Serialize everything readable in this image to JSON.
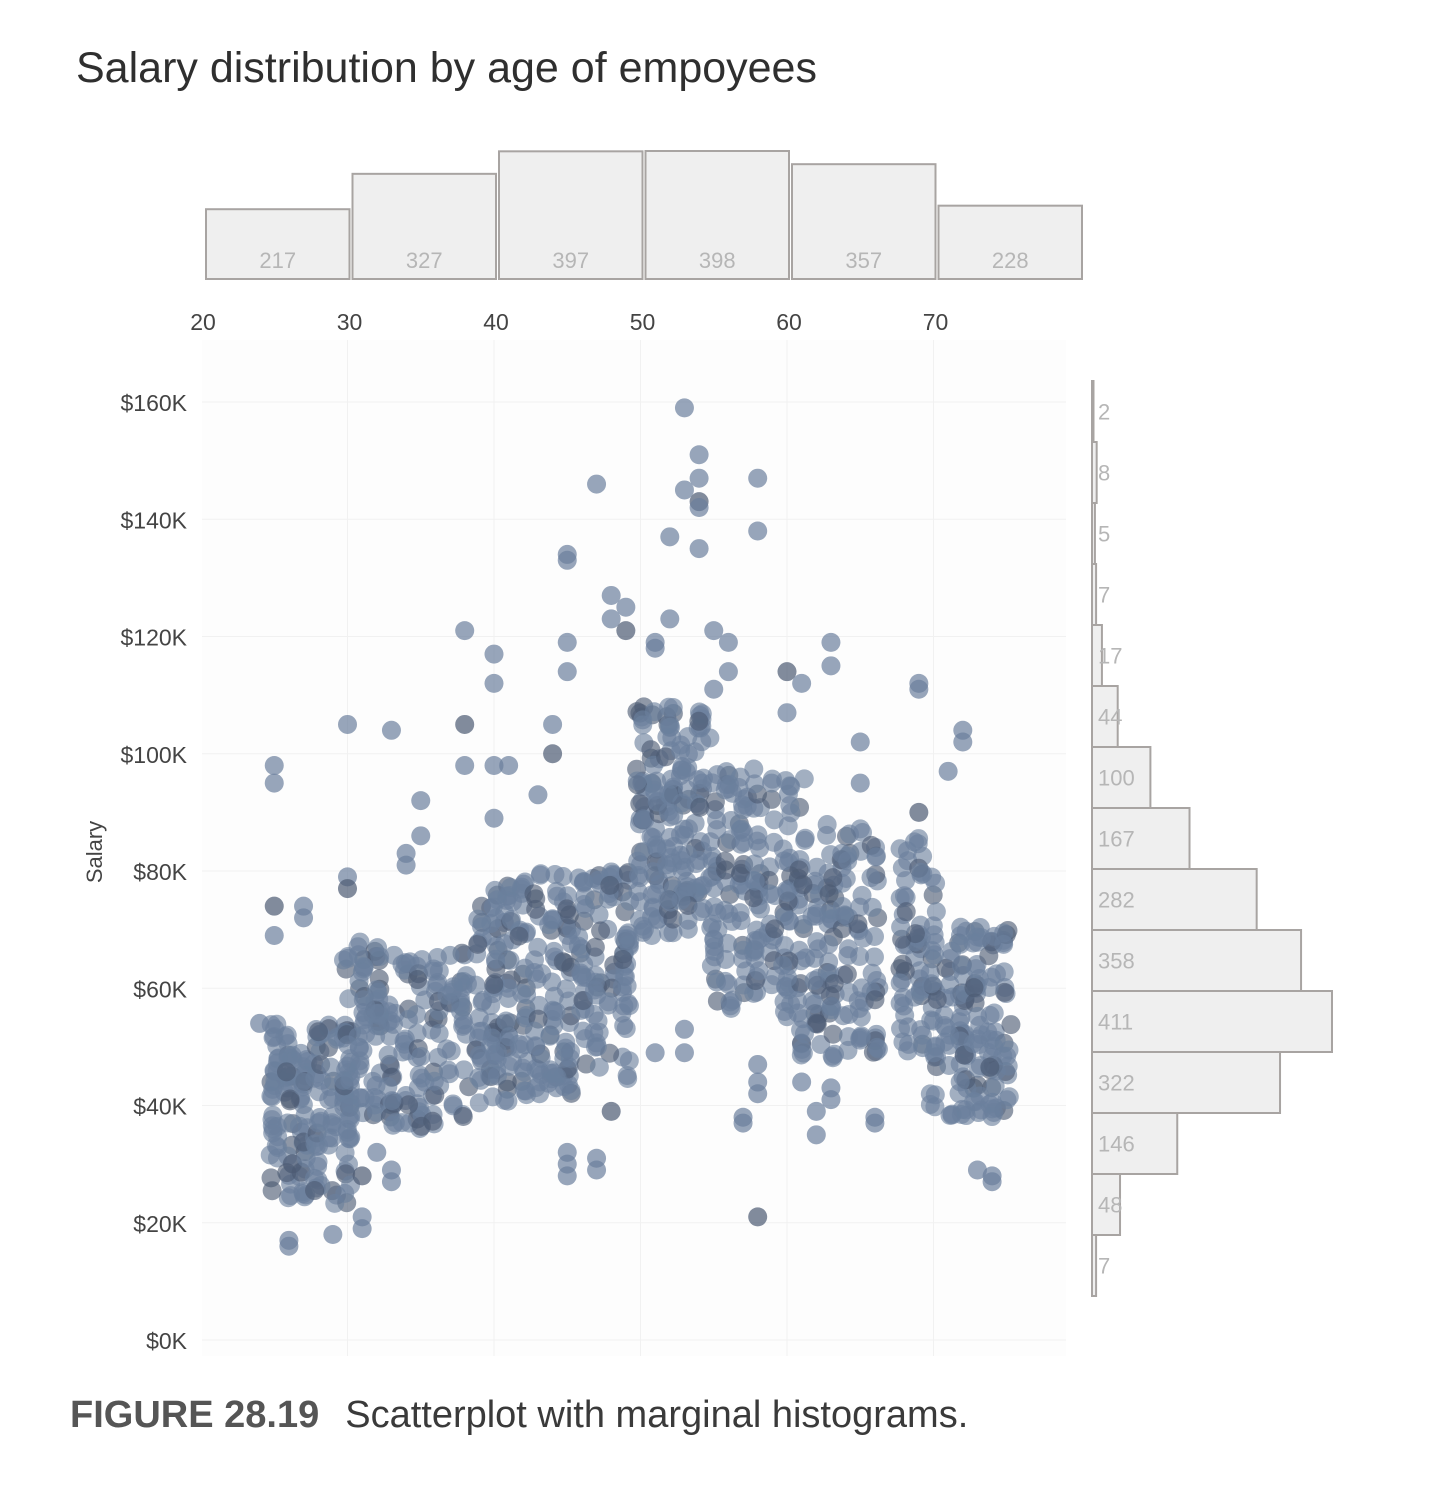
{
  "chart_data": {
    "type": "scatter",
    "title": "Salary distribution by age of empoyees",
    "ylabel": "Salary",
    "xlabel": "",
    "xlim": [
      20,
      78
    ],
    "ylim": [
      0,
      160000
    ],
    "x_ticks": [
      "20",
      "30",
      "40",
      "50",
      "60",
      "70"
    ],
    "y_ticks": [
      "$0K",
      "$20K",
      "$40K",
      "$60K",
      "$80K",
      "$100K",
      "$120K",
      "$140K",
      "$160K"
    ],
    "grid": true,
    "point_color": "#6b7f9c",
    "highlight_color": "#4c5a72",
    "outliers": [
      {
        "x": 24,
        "y": 54000
      },
      {
        "x": 25,
        "y": 98000
      },
      {
        "x": 25,
        "y": 95000
      },
      {
        "x": 25,
        "y": 74000
      },
      {
        "x": 25,
        "y": 69000
      },
      {
        "x": 27,
        "y": 74000
      },
      {
        "x": 27,
        "y": 72000
      },
      {
        "x": 26,
        "y": 17000
      },
      {
        "x": 26,
        "y": 16000
      },
      {
        "x": 29,
        "y": 18000
      },
      {
        "x": 30,
        "y": 105000
      },
      {
        "x": 30,
        "y": 79000
      },
      {
        "x": 30,
        "y": 77000
      },
      {
        "x": 31,
        "y": 21000
      },
      {
        "x": 31,
        "y": 19000
      },
      {
        "x": 33,
        "y": 104000
      },
      {
        "x": 35,
        "y": 92000
      },
      {
        "x": 35,
        "y": 86000
      },
      {
        "x": 34,
        "y": 83000
      },
      {
        "x": 34,
        "y": 81000
      },
      {
        "x": 38,
        "y": 121000
      },
      {
        "x": 38,
        "y": 105000
      },
      {
        "x": 38,
        "y": 98000
      },
      {
        "x": 40,
        "y": 117000
      },
      {
        "x": 40,
        "y": 112000
      },
      {
        "x": 40,
        "y": 98000
      },
      {
        "x": 41,
        "y": 98000
      },
      {
        "x": 40,
        "y": 89000
      },
      {
        "x": 43,
        "y": 93000
      },
      {
        "x": 44,
        "y": 105000
      },
      {
        "x": 44,
        "y": 100000
      },
      {
        "x": 45,
        "y": 134000
      },
      {
        "x": 45,
        "y": 133000
      },
      {
        "x": 45,
        "y": 119000
      },
      {
        "x": 45,
        "y": 114000
      },
      {
        "x": 47,
        "y": 146000
      },
      {
        "x": 48,
        "y": 127000
      },
      {
        "x": 48,
        "y": 123000
      },
      {
        "x": 49,
        "y": 125000
      },
      {
        "x": 49,
        "y": 121000
      },
      {
        "x": 51,
        "y": 119000
      },
      {
        "x": 51,
        "y": 118000
      },
      {
        "x": 52,
        "y": 137000
      },
      {
        "x": 52,
        "y": 123000
      },
      {
        "x": 53,
        "y": 159000
      },
      {
        "x": 53,
        "y": 145000
      },
      {
        "x": 54,
        "y": 151000
      },
      {
        "x": 54,
        "y": 147000
      },
      {
        "x": 54,
        "y": 143000
      },
      {
        "x": 54,
        "y": 142000
      },
      {
        "x": 54,
        "y": 135000
      },
      {
        "x": 55,
        "y": 121000
      },
      {
        "x": 56,
        "y": 119000
      },
      {
        "x": 56,
        "y": 114000
      },
      {
        "x": 55,
        "y": 111000
      },
      {
        "x": 58,
        "y": 147000
      },
      {
        "x": 58,
        "y": 138000
      },
      {
        "x": 60,
        "y": 114000
      },
      {
        "x": 61,
        "y": 112000
      },
      {
        "x": 60,
        "y": 107000
      },
      {
        "x": 63,
        "y": 119000
      },
      {
        "x": 63,
        "y": 115000
      },
      {
        "x": 65,
        "y": 102000
      },
      {
        "x": 65,
        "y": 95000
      },
      {
        "x": 69,
        "y": 112000
      },
      {
        "x": 69,
        "y": 111000
      },
      {
        "x": 69,
        "y": 90000
      },
      {
        "x": 71,
        "y": 97000
      },
      {
        "x": 72,
        "y": 104000
      },
      {
        "x": 72,
        "y": 102000
      },
      {
        "x": 45,
        "y": 32000
      },
      {
        "x": 45,
        "y": 30000
      },
      {
        "x": 45,
        "y": 28000
      },
      {
        "x": 47,
        "y": 31000
      },
      {
        "x": 47,
        "y": 29000
      },
      {
        "x": 48,
        "y": 39000
      },
      {
        "x": 51,
        "y": 49000
      },
      {
        "x": 53,
        "y": 53000
      },
      {
        "x": 53,
        "y": 49000
      },
      {
        "x": 58,
        "y": 47000
      },
      {
        "x": 58,
        "y": 44000
      },
      {
        "x": 58,
        "y": 42000
      },
      {
        "x": 57,
        "y": 38000
      },
      {
        "x": 57,
        "y": 37000
      },
      {
        "x": 58,
        "y": 21000
      },
      {
        "x": 61,
        "y": 44000
      },
      {
        "x": 62,
        "y": 39000
      },
      {
        "x": 62,
        "y": 35000
      },
      {
        "x": 63,
        "y": 43000
      },
      {
        "x": 63,
        "y": 41000
      },
      {
        "x": 66,
        "y": 38000
      },
      {
        "x": 66,
        "y": 37000
      },
      {
        "x": 32,
        "y": 32000
      },
      {
        "x": 31,
        "y": 28000
      },
      {
        "x": 33,
        "y": 29000
      },
      {
        "x": 33,
        "y": 27000
      },
      {
        "x": 73,
        "y": 29000
      },
      {
        "x": 74,
        "y": 28000
      },
      {
        "x": 74,
        "y": 27000
      }
    ],
    "clusters": [
      {
        "x_range": [
          24.5,
          27.5
        ],
        "y_range": [
          24000,
          54000
        ],
        "n": 90
      },
      {
        "x_range": [
          27.5,
          30.5
        ],
        "y_range": [
          23000,
          55000
        ],
        "n": 80
      },
      {
        "x_range": [
          30,
          33
        ],
        "y_range": [
          38000,
          68000
        ],
        "n": 90
      },
      {
        "x_range": [
          33,
          36.5
        ],
        "y_range": [
          36000,
          66000
        ],
        "n": 70
      },
      {
        "x_range": [
          36.5,
          39
        ],
        "y_range": [
          38000,
          66000
        ],
        "n": 40
      },
      {
        "x_range": [
          39,
          42
        ],
        "y_range": [
          40000,
          78000
        ],
        "n": 100
      },
      {
        "x_range": [
          42,
          45.5
        ],
        "y_range": [
          42000,
          80000
        ],
        "n": 100
      },
      {
        "x_range": [
          45.5,
          49.5
        ],
        "y_range": [
          44000,
          80000
        ],
        "n": 100
      },
      {
        "x_range": [
          49.5,
          52
        ],
        "y_range": [
          68000,
          108000
        ],
        "n": 90
      },
      {
        "x_range": [
          52,
          55
        ],
        "y_range": [
          70000,
          108000
        ],
        "n": 100
      },
      {
        "x_range": [
          55,
          58
        ],
        "y_range": [
          56000,
          98000
        ],
        "n": 90
      },
      {
        "x_range": [
          58,
          61
        ],
        "y_range": [
          60000,
          96000
        ],
        "n": 60
      },
      {
        "x_range": [
          60,
          63
        ],
        "y_range": [
          48000,
          82000
        ],
        "n": 80
      },
      {
        "x_range": [
          63,
          66.5
        ],
        "y_range": [
          48000,
          88000
        ],
        "n": 80
      },
      {
        "x_range": [
          67.5,
          70
        ],
        "y_range": [
          48000,
          86000
        ],
        "n": 70
      },
      {
        "x_range": [
          70,
          73
        ],
        "y_range": [
          38000,
          71000
        ],
        "n": 80
      },
      {
        "x_range": [
          73,
          75.5
        ],
        "y_range": [
          38000,
          70000
        ],
        "n": 70
      }
    ],
    "x_histogram": {
      "bins": [
        [
          20,
          30
        ],
        [
          30,
          40
        ],
        [
          40,
          50
        ],
        [
          50,
          60
        ],
        [
          60,
          70
        ],
        [
          70,
          80
        ]
      ],
      "counts": [
        "217",
        "327",
        "397",
        "398",
        "357",
        "228"
      ]
    },
    "y_histogram": {
      "bins_top_down": [
        [
          150000,
          160000
        ],
        [
          140000,
          150000
        ],
        [
          130000,
          140000
        ],
        [
          120000,
          130000
        ],
        [
          110000,
          120000
        ],
        [
          100000,
          110000
        ],
        [
          90000,
          100000
        ],
        [
          80000,
          90000
        ],
        [
          70000,
          80000
        ],
        [
          60000,
          70000
        ],
        [
          50000,
          60000
        ],
        [
          40000,
          50000
        ],
        [
          30000,
          40000
        ],
        [
          20000,
          30000
        ],
        [
          10000,
          20000
        ]
      ],
      "counts": [
        "2",
        "8",
        "5",
        "7",
        "17",
        "44",
        "100",
        "167",
        "282",
        "358",
        "411",
        "322",
        "146",
        "48",
        "7"
      ]
    }
  },
  "caption": {
    "label": "FIGURE 28.19",
    "text": "Scatterplot with marginal histograms."
  }
}
